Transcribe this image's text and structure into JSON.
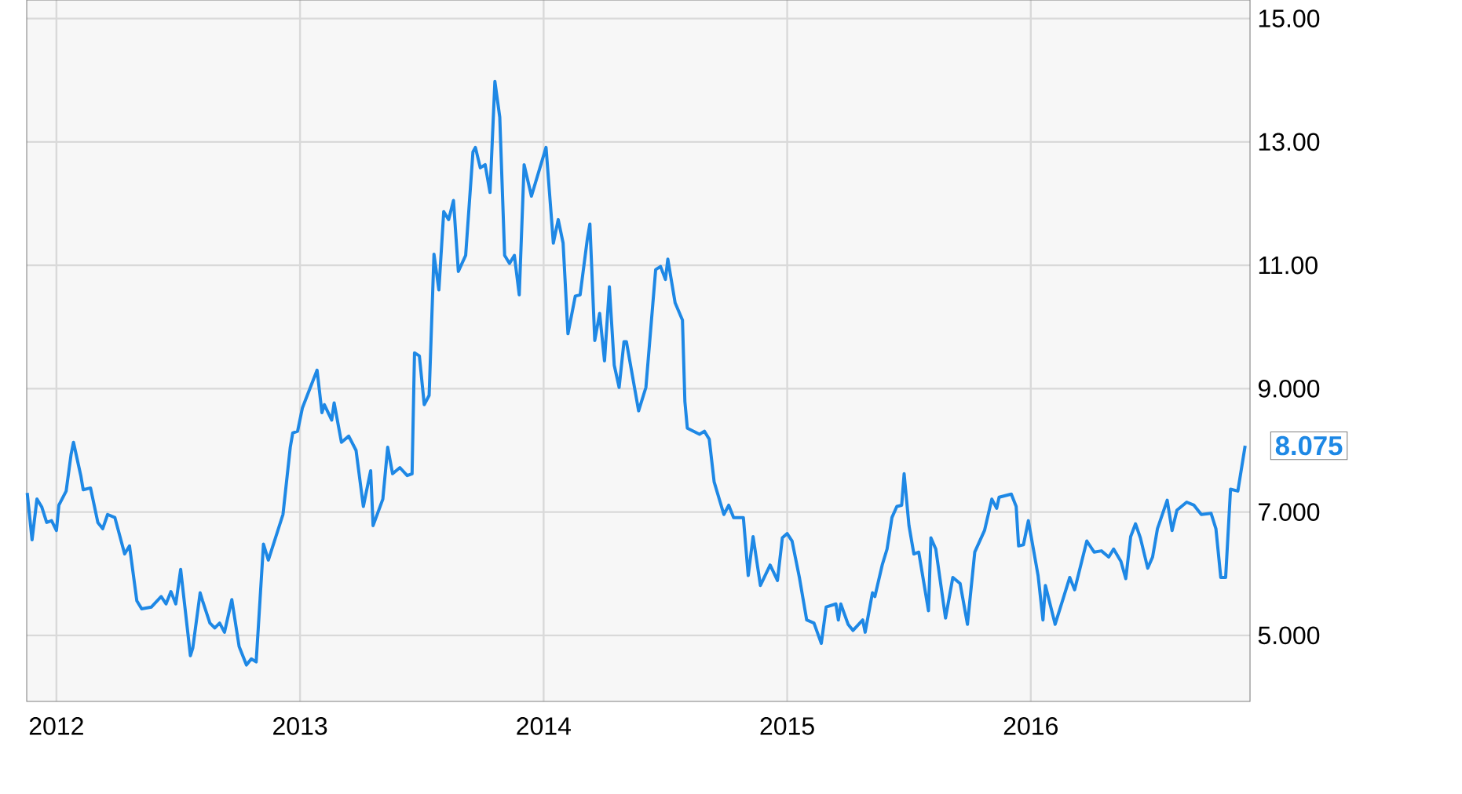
{
  "chart_data": {
    "type": "line",
    "x": [
      2011.88,
      2011.9,
      2011.92,
      2011.94,
      2011.96,
      2011.98,
      2012.0,
      2012.01,
      2012.04,
      2012.06,
      2012.07,
      2012.1,
      2012.11,
      2012.14,
      2012.17,
      2012.19,
      2012.21,
      2012.24,
      2012.28,
      2012.3,
      2012.33,
      2012.35,
      2012.39,
      2012.43,
      2012.45,
      2012.47,
      2012.49,
      2012.51,
      2012.55,
      2012.56,
      2012.59,
      2012.6,
      2012.63,
      2012.65,
      2012.67,
      2012.69,
      2012.72,
      2012.75,
      2012.78,
      2012.8,
      2012.82,
      2012.85,
      2012.87,
      2012.93,
      2012.96,
      2012.97,
      2012.99,
      2013.01,
      2013.07,
      2013.09,
      2013.1,
      2013.13,
      2013.14,
      2013.17,
      2013.2,
      2013.23,
      2013.26,
      2013.29,
      2013.3,
      2013.34,
      2013.36,
      2013.38,
      2013.41,
      2013.44,
      2013.46,
      2013.47,
      2013.49,
      2013.51,
      2013.53,
      2013.55,
      2013.57,
      2013.59,
      2013.61,
      2013.63,
      2013.65,
      2013.68,
      2013.71,
      2013.72,
      2013.74,
      2013.76,
      2013.78,
      2013.8,
      2013.82,
      2013.84,
      2013.86,
      2013.88,
      2013.9,
      2013.92,
      2013.95,
      2014.01,
      2014.04,
      2014.06,
      2014.08,
      2014.1,
      2014.13,
      2014.15,
      2014.18,
      2014.19,
      2014.21,
      2014.23,
      2014.25,
      2014.27,
      2014.29,
      2014.31,
      2014.33,
      2014.34,
      2014.39,
      2014.42,
      2014.46,
      2014.48,
      2014.5,
      2014.51,
      2014.54,
      2014.57,
      2014.58,
      2014.59,
      2014.64,
      2014.66,
      2014.68,
      2014.7,
      2014.74,
      2014.76,
      2014.78,
      2014.82,
      2014.84,
      2014.86,
      2014.89,
      2014.93,
      2014.96,
      2014.98,
      2015.0,
      2015.02,
      2015.05,
      2015.08,
      2015.11,
      2015.14,
      2015.16,
      2015.2,
      2015.21,
      2015.22,
      2015.25,
      2015.27,
      2015.31,
      2015.32,
      2015.35,
      2015.36,
      2015.39,
      2015.41,
      2015.43,
      2015.45,
      2015.47,
      2015.48,
      2015.5,
      2015.52,
      2015.54,
      2015.58,
      2015.59,
      2015.61,
      2015.65,
      2015.68,
      2015.71,
      2015.74,
      2015.77,
      2015.81,
      2015.84,
      2015.86,
      2015.87,
      2015.92,
      2015.94,
      2015.95,
      2015.97,
      2015.99,
      2016.03,
      2016.05,
      2016.06,
      2016.1,
      2016.16,
      2016.18,
      2016.23,
      2016.24,
      2016.26,
      2016.29,
      2016.32,
      2016.34,
      2016.37,
      2016.39,
      2016.41,
      2016.43,
      2016.45,
      2016.48,
      2016.5,
      2016.52,
      2016.56,
      2016.58,
      2016.6,
      2016.64,
      2016.67,
      2016.7,
      2016.74,
      2016.76,
      2016.78,
      2016.8,
      2016.82,
      2016.85,
      2016.88
    ],
    "series": [
      {
        "color": "#1e88e5",
        "values": [
          7.31,
          6.55,
          7.21,
          7.08,
          6.83,
          6.86,
          6.7,
          7.11,
          7.34,
          7.93,
          8.13,
          7.59,
          7.36,
          7.39,
          6.83,
          6.73,
          6.96,
          6.91,
          6.32,
          6.45,
          5.56,
          5.43,
          5.46,
          5.63,
          5.51,
          5.71,
          5.51,
          6.07,
          4.67,
          4.8,
          5.69,
          5.56,
          5.2,
          5.12,
          5.2,
          5.05,
          5.58,
          4.82,
          4.52,
          4.62,
          4.57,
          6.48,
          6.22,
          6.96,
          8.05,
          8.28,
          8.31,
          8.69,
          9.3,
          8.61,
          8.74,
          8.49,
          8.77,
          8.13,
          8.23,
          8.0,
          7.09,
          7.67,
          6.78,
          7.21,
          8.05,
          7.62,
          7.72,
          7.59,
          7.62,
          9.58,
          9.53,
          8.74,
          8.89,
          11.18,
          10.6,
          11.87,
          11.74,
          12.05,
          10.9,
          11.16,
          12.84,
          12.91,
          12.58,
          12.63,
          12.18,
          13.98,
          13.4,
          11.16,
          11.03,
          11.16,
          10.52,
          12.63,
          12.12,
          12.91,
          11.36,
          11.74,
          11.36,
          9.89,
          10.5,
          10.52,
          11.44,
          11.67,
          9.78,
          10.22,
          9.45,
          10.65,
          9.38,
          9.02,
          9.76,
          9.76,
          8.64,
          9.02,
          10.93,
          10.98,
          10.77,
          11.1,
          10.39,
          10.11,
          8.79,
          8.36,
          8.26,
          8.31,
          8.18,
          7.49,
          6.96,
          7.11,
          6.91,
          6.91,
          5.97,
          6.6,
          5.81,
          6.14,
          5.89,
          6.58,
          6.65,
          6.53,
          5.94,
          5.25,
          5.2,
          4.87,
          5.46,
          5.51,
          5.25,
          5.51,
          5.18,
          5.08,
          5.25,
          5.05,
          5.69,
          5.63,
          6.14,
          6.4,
          6.91,
          7.09,
          7.11,
          7.62,
          6.78,
          6.32,
          6.35,
          5.4,
          6.58,
          6.4,
          5.28,
          5.94,
          5.84,
          5.18,
          6.35,
          6.7,
          7.21,
          7.06,
          7.24,
          7.29,
          7.09,
          6.45,
          6.47,
          6.86,
          5.97,
          5.25,
          5.81,
          5.18,
          5.94,
          5.74,
          6.53,
          6.47,
          6.35,
          6.37,
          6.27,
          6.4,
          6.2,
          5.92,
          6.6,
          6.81,
          6.58,
          6.09,
          6.27,
          6.73,
          7.19,
          6.7,
          7.03,
          7.16,
          7.11,
          6.96,
          6.98,
          6.73,
          5.94,
          5.94,
          7.37,
          7.34,
          8.075
        ]
      }
    ],
    "xlim": [
      2011.878,
      2016.9
    ],
    "ylim": [
      3.93,
      15.3
    ],
    "xticks": [
      2012,
      2013,
      2014,
      2015,
      2016
    ],
    "yticks": [
      {
        "value": 5,
        "label": "5.000"
      },
      {
        "value": 7,
        "label": "7.000"
      },
      {
        "value": 9,
        "label": "9.000"
      },
      {
        "value": 11,
        "label": "11.00"
      },
      {
        "value": 13,
        "label": "13.00"
      },
      {
        "value": 15,
        "label": "15.00"
      }
    ],
    "annotations": [
      {
        "text": "8.075",
        "x": 2016.88,
        "y": 8.075
      }
    ],
    "grid": true,
    "marker": "none",
    "line_style": "solid"
  }
}
